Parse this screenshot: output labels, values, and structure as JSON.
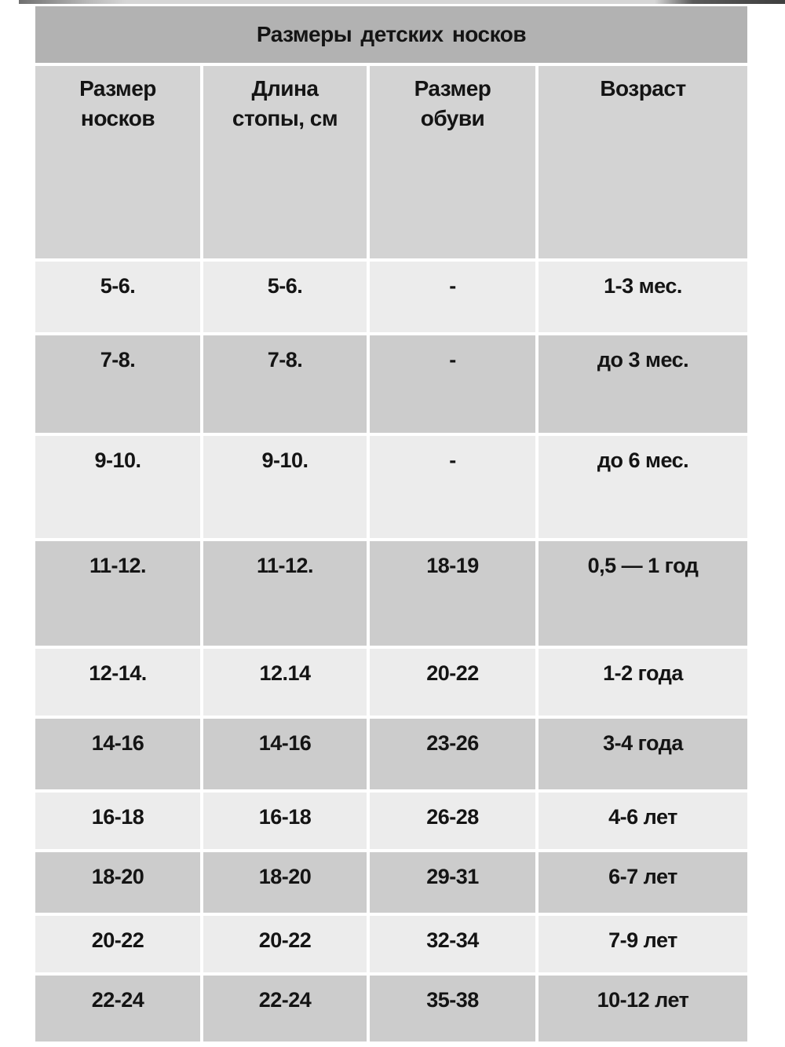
{
  "page": {
    "background": "#ffffff",
    "top_strip": "#5a5a5a"
  },
  "table": {
    "title": "Размеры детских носков",
    "columns": [
      "Размер\nносков",
      "Длина\nстопы, см",
      "Размер\nобуви",
      "Возраст"
    ],
    "rows": [
      [
        "5-6.",
        "5-6.",
        "-",
        "1-3 мес."
      ],
      [
        "7-8.",
        "7-8.",
        "-",
        "до 3 мес."
      ],
      [
        "9-10.",
        "9-10.",
        "-",
        "до 6 мес."
      ],
      [
        "11-12.",
        "11-12.",
        "18-19",
        "0,5 — 1 год"
      ],
      [
        "12-14.",
        "12.14",
        "20-22",
        "1-2 года"
      ],
      [
        "14-16",
        "14-16",
        "23-26",
        "3-4 года"
      ],
      [
        "16-18",
        "16-18",
        "26-28",
        "4-6 лет"
      ],
      [
        "18-20",
        "18-20",
        "29-31",
        "6-7 лет"
      ],
      [
        "20-22",
        "20-22",
        "32-34",
        "7-9 лет"
      ],
      [
        "22-24",
        "22-24",
        "35-38",
        "10-12 лет"
      ]
    ],
    "colors": {
      "title_bg": "#b2b2b2",
      "header_bg": "#d3d3d3",
      "row_light_bg": "#ececec",
      "row_dark_bg": "#cccccc",
      "text": "#141414",
      "gap": "#ffffff"
    }
  }
}
